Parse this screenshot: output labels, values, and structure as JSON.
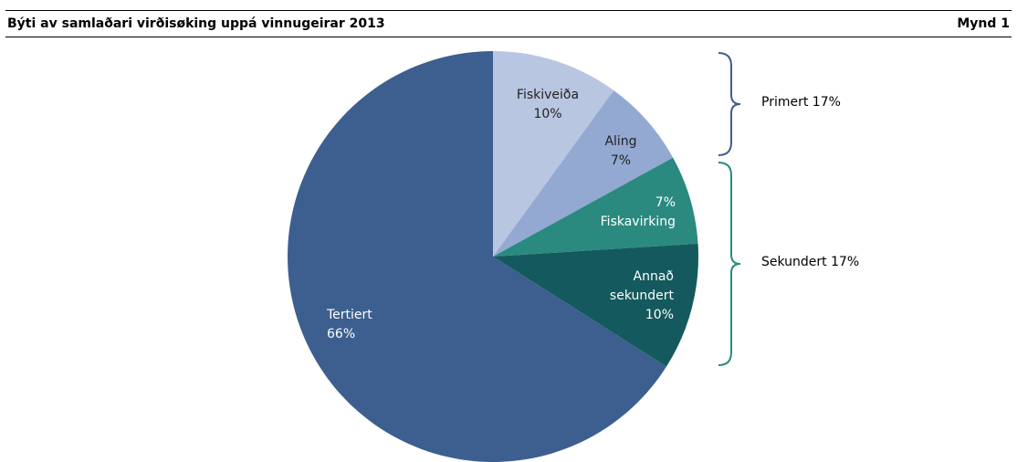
{
  "chart_data": {
    "type": "pie",
    "title": "Býti av samlaðari virðisøking uppá vinnugeirar 2013",
    "figure_label": "Mynd 1",
    "categories": [
      "Fiskiveiða",
      "Aling",
      "Fiskavirking",
      "Annað sekundert",
      "Tertiert"
    ],
    "values": [
      10,
      7,
      7,
      10,
      66
    ],
    "value_labels": [
      "10%",
      "7%",
      "7%",
      "10%",
      "66%"
    ],
    "colors": [
      "#b9c6e1",
      "#93a9d2",
      "#2b8a80",
      "#14595d",
      "#3c5f8f"
    ],
    "annotations": [
      {
        "text": "Primert 17%",
        "color": "#3c5f8f"
      },
      {
        "text": "Sekundert 17%",
        "color": "#2b8a80"
      }
    ]
  }
}
